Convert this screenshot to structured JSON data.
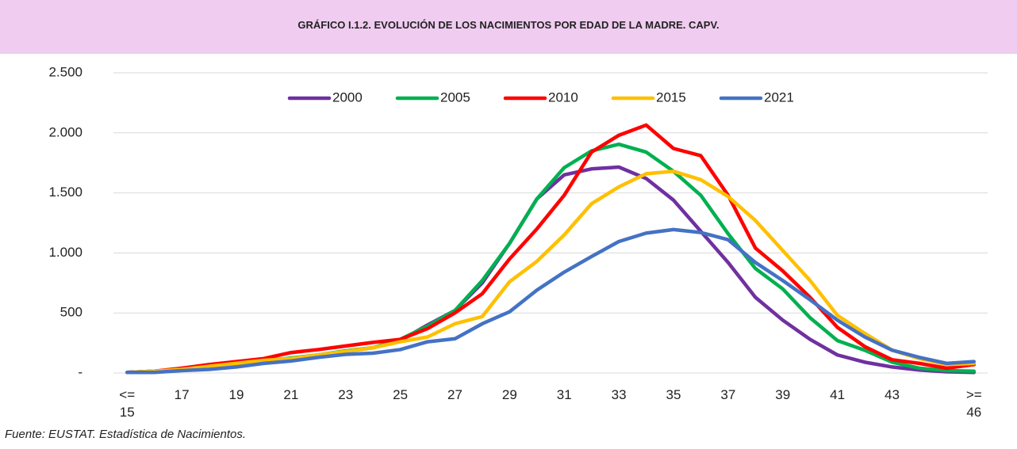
{
  "chart_data": {
    "type": "line",
    "title": "GRÁFICO I.1.2. EVOLUCIÓN DE LOS NACIMIENTOS POR EDAD DE LA MADRE. CAPV.",
    "source": "Fuente: EUSTAT. Estadística de Nacimientos.",
    "categories": [
      "<= 15",
      null,
      "17",
      null,
      "19",
      null,
      "21",
      null,
      "23",
      null,
      "25",
      null,
      "27",
      null,
      "29",
      null,
      "31",
      null,
      "33",
      null,
      "35",
      null,
      "37",
      null,
      "39",
      null,
      "41",
      null,
      "43",
      null,
      null,
      ">= 46"
    ],
    "series": [
      {
        "name": "2000",
        "color": "#7030a0",
        "values": [
          5,
          15,
          30,
          45,
          70,
          95,
          120,
          150,
          180,
          210,
          270,
          400,
          520,
          750,
          1080,
          1450,
          1650,
          1700,
          1715,
          1620,
          1440,
          1180,
          920,
          630,
          440,
          280,
          150,
          90,
          50,
          25,
          10,
          5
        ]
      },
      {
        "name": "2005",
        "color": "#00b050",
        "values": [
          5,
          15,
          30,
          50,
          75,
          100,
          125,
          150,
          185,
          210,
          280,
          390,
          520,
          770,
          1080,
          1450,
          1710,
          1850,
          1905,
          1840,
          1680,
          1480,
          1160,
          870,
          700,
          460,
          270,
          190,
          90,
          40,
          20,
          15
        ]
      },
      {
        "name": "2010",
        "color": "#ff0000",
        "values": [
          5,
          15,
          40,
          70,
          95,
          120,
          170,
          195,
          225,
          255,
          280,
          370,
          500,
          660,
          950,
          1200,
          1480,
          1840,
          1980,
          2065,
          1870,
          1810,
          1480,
          1040,
          850,
          630,
          380,
          220,
          110,
          80,
          40,
          70
        ]
      },
      {
        "name": "2015",
        "color": "#ffc000",
        "values": [
          5,
          15,
          30,
          55,
          80,
          105,
          120,
          150,
          180,
          210,
          260,
          300,
          410,
          470,
          760,
          930,
          1150,
          1410,
          1550,
          1660,
          1680,
          1610,
          1470,
          1270,
          1020,
          770,
          480,
          330,
          190,
          120,
          70,
          80
        ]
      },
      {
        "name": "2021",
        "color": "#4472c4",
        "values": [
          5,
          5,
          20,
          30,
          50,
          80,
          100,
          130,
          155,
          165,
          195,
          260,
          285,
          410,
          510,
          690,
          840,
          970,
          1095,
          1165,
          1195,
          1170,
          1110,
          920,
          770,
          610,
          440,
          300,
          190,
          130,
          80,
          95
        ]
      }
    ],
    "ylim": [
      0,
      2500
    ],
    "yticks": [
      {
        "value": 0,
        "label": "-"
      },
      500,
      {
        "value": 1000,
        "label": "1.000"
      },
      {
        "value": 1500,
        "label": "1.500"
      },
      {
        "value": 2000,
        "label": "2.000"
      },
      {
        "value": 2500,
        "label": "2.500"
      }
    ],
    "grid": true,
    "legend": "top"
  }
}
